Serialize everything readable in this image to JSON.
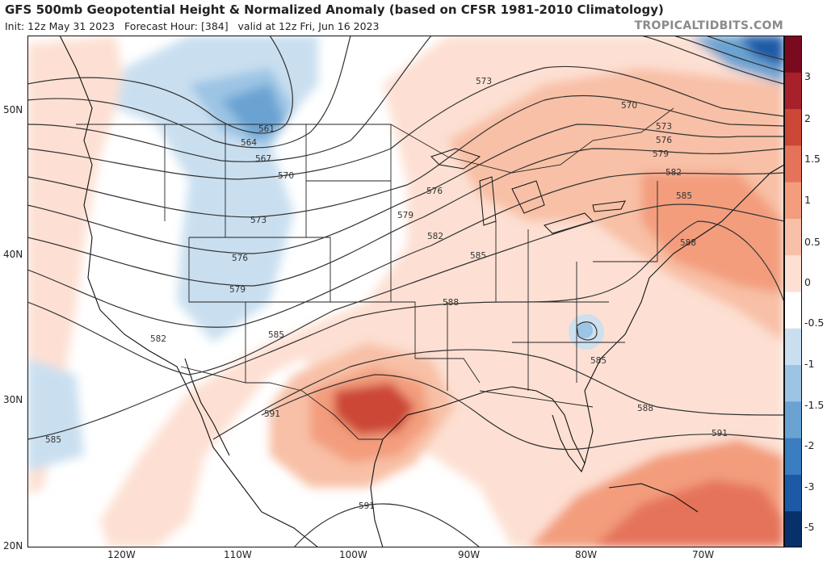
{
  "header": {
    "title": "GFS 500mb Geopotential Height & Normalized Anomaly (based on CFSR 1981-2010 Climatology)",
    "init": "Init: 12z May 31 2023",
    "forecast_hour": "Forecast Hour: [384]",
    "valid": "valid at 12z Fri, Jun 16 2023",
    "credit": "TROPICALTIDBITS.COM"
  },
  "map": {
    "lat_labels": [
      {
        "text": "50N",
        "lat": 50
      },
      {
        "text": "40N",
        "lat": 40
      },
      {
        "text": "30N",
        "lat": 30
      },
      {
        "text": "20N",
        "lat": 20
      }
    ],
    "lon_labels": [
      {
        "text": "120W",
        "lon": -120
      },
      {
        "text": "110W",
        "lon": -110
      },
      {
        "text": "100W",
        "lon": -100
      },
      {
        "text": "90W",
        "lon": -90
      },
      {
        "text": "80W",
        "lon": -80
      },
      {
        "text": "70W",
        "lon": -70
      }
    ],
    "contour_labels": [
      "561",
      "564",
      "567",
      "570",
      "573",
      "576",
      "579",
      "582",
      "585",
      "588",
      "591"
    ]
  },
  "colorbar": {
    "ticks": [
      {
        "text": "3",
        "value": 3
      },
      {
        "text": "2",
        "value": 2
      },
      {
        "text": "1.5",
        "value": 1.5
      },
      {
        "text": "1",
        "value": 1
      },
      {
        "text": "0.5",
        "value": 0.5
      },
      {
        "text": "0",
        "value": 0
      },
      {
        "text": "-0.5",
        "value": -0.5
      },
      {
        "text": "-1",
        "value": -1
      },
      {
        "text": "-1.5",
        "value": -1.5
      },
      {
        "text": "-2",
        "value": -2
      },
      {
        "text": "-3",
        "value": -3
      },
      {
        "text": "-5",
        "value": -5
      }
    ],
    "colors": [
      "#08306b",
      "#1c5aa6",
      "#3a7dc0",
      "#6aa3d2",
      "#9cc4e4",
      "#c9dff0",
      "#ffffff",
      "#fde0d3",
      "#f8c0a6",
      "#f39d7d",
      "#e5735a",
      "#cc4736",
      "#a8202a",
      "#7a0a1e"
    ]
  }
}
